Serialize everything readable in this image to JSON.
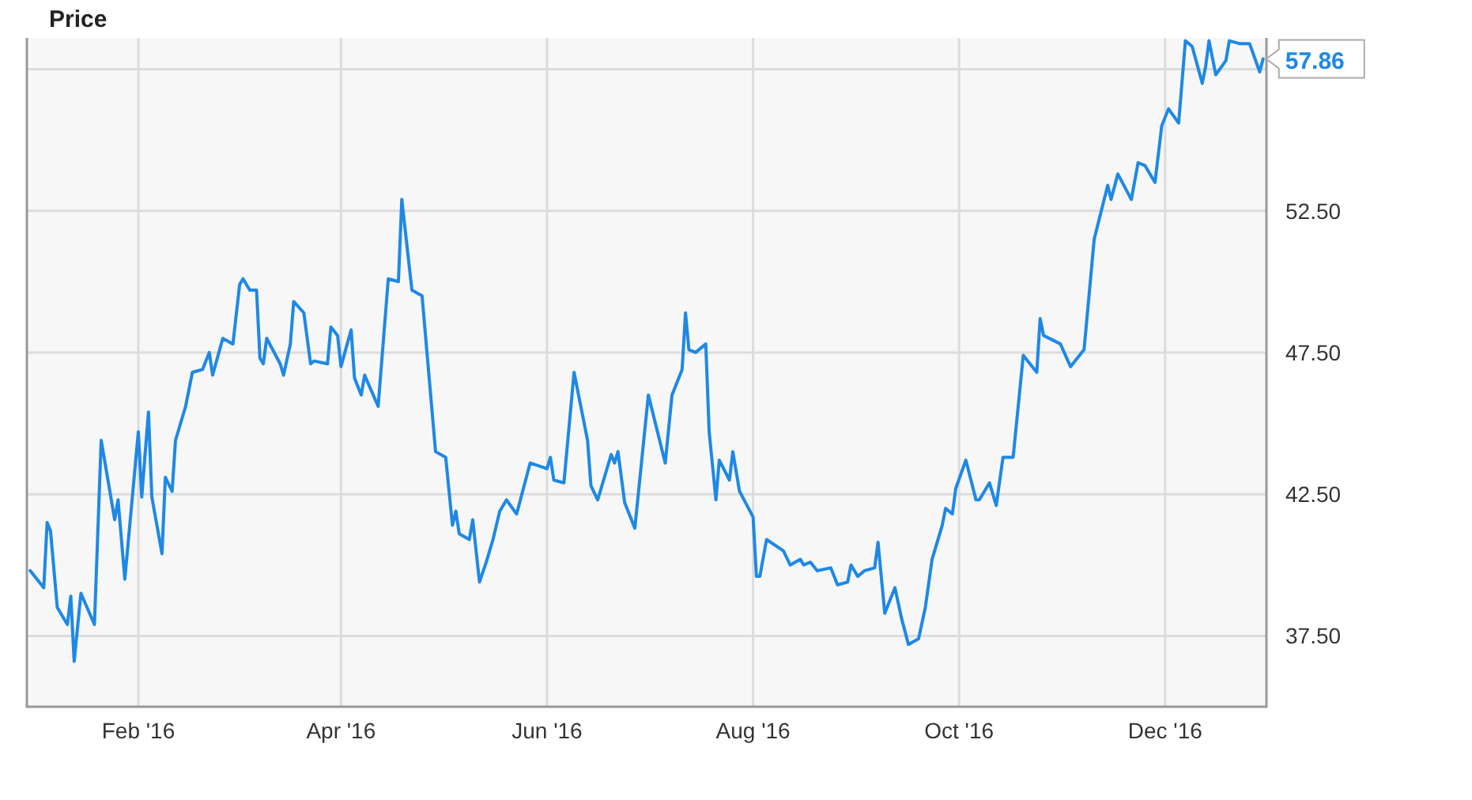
{
  "chart_data": {
    "type": "line",
    "title": "Price",
    "x": [
      "2015-12-31",
      "2016-01-04",
      "2016-01-05",
      "2016-01-06",
      "2016-01-08",
      "2016-01-11",
      "2016-01-12",
      "2016-01-13",
      "2016-01-15",
      "2016-01-19",
      "2016-01-21",
      "2016-01-25",
      "2016-01-26",
      "2016-01-28",
      "2016-02-01",
      "2016-02-02",
      "2016-02-04",
      "2016-02-05",
      "2016-02-08",
      "2016-02-09",
      "2016-02-11",
      "2016-02-12",
      "2016-02-15",
      "2016-02-17",
      "2016-02-20",
      "2016-02-22",
      "2016-02-23",
      "2016-02-26",
      "2016-02-29",
      "2016-03-02",
      "2016-03-03",
      "2016-03-05",
      "2016-03-07",
      "2016-03-08",
      "2016-03-09",
      "2016-03-10",
      "2016-03-14",
      "2016-03-15",
      "2016-03-17",
      "2016-03-18",
      "2016-03-21",
      "2016-03-23",
      "2016-03-24",
      "2016-03-28",
      "2016-03-29",
      "2016-03-31",
      "2016-04-01",
      "2016-04-04",
      "2016-04-05",
      "2016-04-07",
      "2016-04-08",
      "2016-04-12",
      "2016-04-15",
      "2016-04-18",
      "2016-04-19",
      "2016-04-22",
      "2016-04-25",
      "2016-04-29",
      "2016-05-02",
      "2016-05-04",
      "2016-05-05",
      "2016-05-06",
      "2016-05-09",
      "2016-05-10",
      "2016-05-12",
      "2016-05-14",
      "2016-05-16",
      "2016-05-18",
      "2016-05-20",
      "2016-05-23",
      "2016-05-25",
      "2016-05-27",
      "2016-06-01",
      "2016-06-02",
      "2016-06-03",
      "2016-06-06",
      "2016-06-09",
      "2016-06-13",
      "2016-06-14",
      "2016-06-16",
      "2016-06-20",
      "2016-06-21",
      "2016-06-22",
      "2016-06-24",
      "2016-06-27",
      "2016-07-01",
      "2016-07-06",
      "2016-07-08",
      "2016-07-11",
      "2016-07-12",
      "2016-07-13",
      "2016-07-15",
      "2016-07-18",
      "2016-07-19",
      "2016-07-21",
      "2016-07-22",
      "2016-07-25",
      "2016-07-26",
      "2016-07-28",
      "2016-08-01",
      "2016-08-02",
      "2016-08-03",
      "2016-08-05",
      "2016-08-10",
      "2016-08-12",
      "2016-08-15",
      "2016-08-16",
      "2016-08-18",
      "2016-08-20",
      "2016-08-24",
      "2016-08-26",
      "2016-08-29",
      "2016-08-30",
      "2016-09-01",
      "2016-09-03",
      "2016-09-06",
      "2016-09-07",
      "2016-09-09",
      "2016-09-12",
      "2016-09-14",
      "2016-09-16",
      "2016-09-19",
      "2016-09-21",
      "2016-09-23",
      "2016-09-26",
      "2016-09-27",
      "2016-09-29",
      "2016-09-30",
      "2016-10-03",
      "2016-10-06",
      "2016-10-07",
      "2016-10-10",
      "2016-10-12",
      "2016-10-14",
      "2016-10-17",
      "2016-10-20",
      "2016-10-24",
      "2016-10-25",
      "2016-10-26",
      "2016-10-31",
      "2016-11-03",
      "2016-11-07",
      "2016-11-10",
      "2016-11-14",
      "2016-11-15",
      "2016-11-17",
      "2016-11-21",
      "2016-11-23",
      "2016-11-25",
      "2016-11-28",
      "2016-11-30",
      "2016-12-02",
      "2016-12-05",
      "2016-12-07",
      "2016-12-09",
      "2016-12-12",
      "2016-12-13",
      "2016-12-14",
      "2016-12-16",
      "2016-12-19",
      "2016-12-20",
      "2016-12-23",
      "2016-12-26",
      "2016-12-29",
      "2016-12-30"
    ],
    "series": [
      {
        "color": "#1e88e5",
        "values": [
          39.8,
          39.2,
          41.5,
          41.2,
          38.5,
          37.9,
          38.9,
          36.6,
          39.0,
          37.9,
          44.4,
          41.6,
          42.3,
          39.5,
          44.7,
          42.4,
          45.4,
          42.4,
          40.4,
          43.1,
          42.6,
          44.4,
          45.6,
          46.8,
          46.9,
          47.5,
          46.7,
          48.0,
          47.8,
          49.9,
          50.1,
          49.7,
          49.7,
          47.3,
          47.1,
          48.0,
          47.1,
          46.7,
          47.8,
          49.3,
          48.9,
          47.1,
          47.2,
          47.1,
          48.4,
          48.1,
          47.0,
          48.3,
          46.6,
          46.0,
          46.7,
          45.6,
          50.1,
          50.0,
          52.9,
          49.7,
          49.5,
          44.0,
          43.8,
          41.4,
          41.9,
          41.1,
          40.9,
          41.6,
          39.4,
          40.1,
          40.9,
          41.9,
          42.3,
          41.8,
          42.7,
          43.6,
          43.4,
          43.8,
          43.0,
          42.9,
          46.8,
          44.4,
          42.8,
          42.3,
          43.9,
          43.6,
          44.0,
          42.2,
          41.3,
          46.0,
          43.6,
          46.0,
          46.9,
          48.9,
          47.6,
          47.5,
          47.8,
          44.7,
          42.3,
          43.7,
          43.0,
          44.0,
          42.6,
          41.7,
          39.6,
          39.6,
          40.9,
          40.5,
          40.0,
          40.2,
          40.0,
          40.1,
          39.8,
          39.9,
          39.3,
          39.4,
          40.0,
          39.6,
          39.8,
          39.9,
          40.8,
          38.3,
          39.2,
          38.1,
          37.2,
          37.4,
          38.5,
          40.2,
          41.4,
          42.0,
          41.8,
          42.7,
          43.7,
          42.3,
          42.3,
          42.9,
          42.1,
          43.8,
          43.8,
          47.4,
          46.8,
          48.7,
          48.1,
          47.8,
          47.0,
          47.6,
          51.5,
          53.4,
          52.9,
          53.8,
          52.9,
          54.2,
          54.1,
          53.5,
          55.5,
          56.1,
          55.6,
          58.5,
          58.3,
          57.0,
          57.6,
          58.5,
          57.3,
          57.8,
          58.5,
          58.4,
          58.4,
          57.4,
          57.86
        ]
      }
    ],
    "xlim": [
      "2015-12-30",
      "2016-12-31"
    ],
    "xticks": [
      {
        "value": "2016-02-01",
        "label": "Feb '16"
      },
      {
        "value": "2016-04-01",
        "label": "Apr '16"
      },
      {
        "value": "2016-06-01",
        "label": "Jun '16"
      },
      {
        "value": "2016-08-01",
        "label": "Aug '16"
      },
      {
        "value": "2016-10-01",
        "label": "Oct '16"
      },
      {
        "value": "2016-12-01",
        "label": "Dec '16"
      }
    ],
    "ylim": [
      35,
      58.6
    ],
    "yticks": [
      {
        "value": 37.5,
        "label": "37.50"
      },
      {
        "value": 42.5,
        "label": "42.50"
      },
      {
        "value": 47.5,
        "label": "47.50"
      },
      {
        "value": 52.5,
        "label": "52.50"
      },
      {
        "value": 57.5,
        "label": null
      }
    ],
    "grid": true,
    "annotations": [
      {
        "text": "57.86",
        "x": "2016-12-30",
        "y": 57.86
      }
    ]
  }
}
